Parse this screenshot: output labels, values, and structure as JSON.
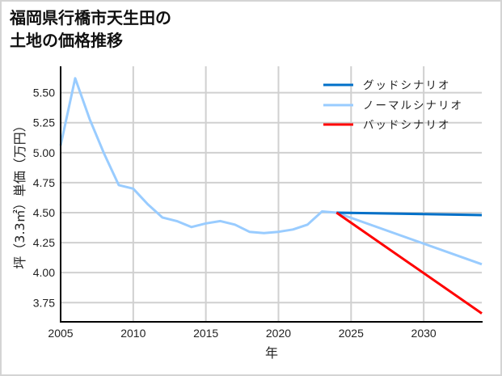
{
  "chart_data": {
    "type": "line",
    "title": "福岡県行橋市天生田の\n土地の価格推移",
    "title_lines": [
      "福岡県行橋市天生田の",
      "土地の価格推移"
    ],
    "xlabel": "年",
    "ylabel": "坪（3.3㎡）単価（万円）",
    "xlim": [
      2005,
      2034
    ],
    "ylim": [
      3.59,
      5.72
    ],
    "x_ticks": [
      2005,
      2010,
      2015,
      2020,
      2025,
      2030
    ],
    "x_tick_labels": [
      "2005",
      "2010",
      "2015",
      "2020",
      "2025",
      "2030"
    ],
    "y_ticks": [
      3.75,
      4.0,
      4.25,
      4.5,
      4.75,
      5.0,
      5.25,
      5.5
    ],
    "y_tick_labels": [
      "3.75",
      "4.00",
      "4.25",
      "4.50",
      "4.75",
      "5.00",
      "5.25",
      "5.50"
    ],
    "grid": true,
    "legend_position": "upper right",
    "series": [
      {
        "name": "グッドシナリオ",
        "color": "#0070c8",
        "x": [
          2024,
          2034
        ],
        "values": [
          4.5,
          4.48
        ]
      },
      {
        "name": "ノーマルシナリオ",
        "color": "#99ccff",
        "x": [
          2005,
          2006,
          2007,
          2008,
          2009,
          2010,
          2011,
          2012,
          2013,
          2014,
          2015,
          2016,
          2017,
          2018,
          2019,
          2020,
          2021,
          2022,
          2023,
          2024,
          2034
        ],
        "values": [
          5.06,
          5.62,
          5.28,
          4.99,
          4.73,
          4.7,
          4.57,
          4.46,
          4.43,
          4.38,
          4.41,
          4.43,
          4.4,
          4.34,
          4.33,
          4.34,
          4.36,
          4.4,
          4.51,
          4.5,
          4.07
        ]
      },
      {
        "name": "バッドシナリオ",
        "color": "#ff0000",
        "x": [
          2024,
          2034
        ],
        "values": [
          4.5,
          3.66
        ]
      }
    ]
  }
}
